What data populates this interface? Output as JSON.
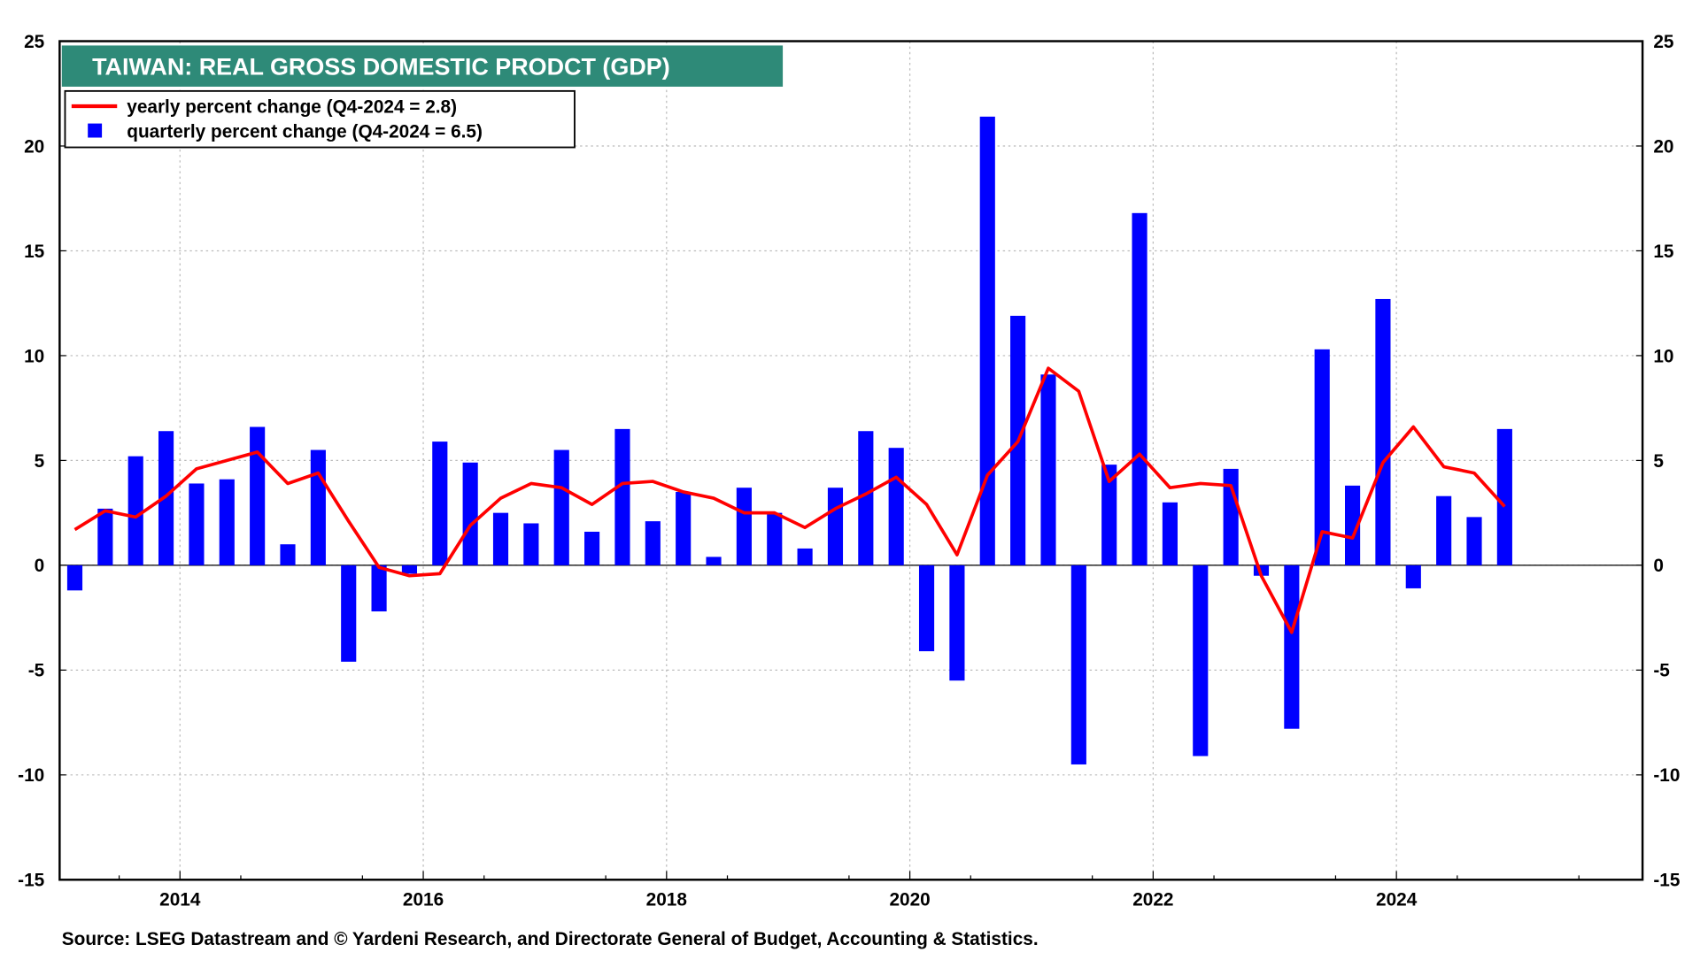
{
  "chart_data": {
    "type": "bar+line",
    "title": "TAIWAN: REAL GROSS DOMESTIC PRODCT (GDP)",
    "source": "Source: LSEG Datastream and © Yardeni Research, and Directorate General of Budget, Accounting & Statistics.",
    "ylim": [
      -15,
      25
    ],
    "yticks": [
      "25",
      "20",
      "15",
      "10",
      "5",
      "0",
      "-5",
      "-10",
      "-15"
    ],
    "ytick_values": [
      25,
      20,
      15,
      10,
      5,
      0,
      -5,
      -10,
      -15
    ],
    "xticks": [
      "2014",
      "2016",
      "2018",
      "2020",
      "2022",
      "2024"
    ],
    "xtick_values": [
      2014,
      2016,
      2018,
      2020,
      2022,
      2024
    ],
    "xlim": [
      2013,
      2026
    ],
    "grid": true,
    "legend_position": "top-left",
    "x": [
      "2013Q1",
      "2013Q2",
      "2013Q3",
      "2013Q4",
      "2014Q1",
      "2014Q2",
      "2014Q3",
      "2014Q4",
      "2015Q1",
      "2015Q2",
      "2015Q3",
      "2015Q4",
      "2016Q1",
      "2016Q2",
      "2016Q3",
      "2016Q4",
      "2017Q1",
      "2017Q2",
      "2017Q3",
      "2017Q4",
      "2018Q1",
      "2018Q2",
      "2018Q3",
      "2018Q4",
      "2019Q1",
      "2019Q2",
      "2019Q3",
      "2019Q4",
      "2020Q1",
      "2020Q2",
      "2020Q3",
      "2020Q4",
      "2021Q1",
      "2021Q2",
      "2021Q3",
      "2021Q4",
      "2022Q1",
      "2022Q2",
      "2022Q3",
      "2022Q4",
      "2023Q1",
      "2023Q2",
      "2023Q3",
      "2023Q4",
      "2024Q1",
      "2024Q2",
      "2024Q3",
      "2024Q4"
    ],
    "series": [
      {
        "name": "quarterly percent change (Q4-2024 = 6.5)",
        "type": "bar",
        "color": "#0000ff",
        "values": [
          -1.2,
          2.7,
          5.2,
          6.4,
          3.9,
          4.1,
          6.6,
          1.0,
          5.5,
          -4.6,
          -2.2,
          -0.4,
          5.9,
          4.9,
          2.5,
          2.0,
          5.5,
          1.6,
          6.5,
          2.1,
          3.5,
          0.4,
          3.7,
          2.5,
          0.8,
          3.7,
          6.4,
          5.6,
          -4.1,
          -5.5,
          21.4,
          11.9,
          9.1,
          -9.5,
          4.8,
          16.8,
          3.0,
          -9.1,
          4.6,
          -0.5,
          -7.8,
          10.3,
          3.8,
          12.7,
          -1.1,
          3.3,
          2.3,
          6.5
        ]
      },
      {
        "name": "yearly percent change (Q4-2024 = 2.8)",
        "type": "line",
        "color": "#ff0000",
        "values": [
          1.7,
          2.6,
          2.3,
          3.3,
          4.6,
          5.0,
          5.4,
          3.9,
          4.4,
          2.1,
          -0.1,
          -0.5,
          -0.4,
          1.9,
          3.2,
          3.9,
          3.7,
          2.9,
          3.9,
          4.0,
          3.5,
          3.2,
          2.5,
          2.5,
          1.8,
          2.7,
          3.4,
          4.2,
          2.9,
          0.5,
          4.3,
          5.9,
          9.4,
          8.3,
          4.0,
          5.3,
          3.7,
          3.9,
          3.8,
          -0.5,
          -3.2,
          1.6,
          1.3,
          4.9,
          6.6,
          4.7,
          4.4,
          2.8
        ]
      }
    ],
    "title_color": "#2e8a78"
  }
}
